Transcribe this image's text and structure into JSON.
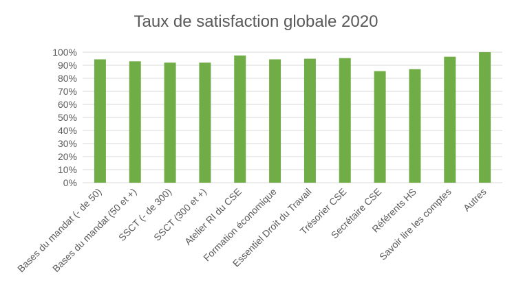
{
  "chart_data": {
    "type": "bar",
    "title": "Taux de satisfaction globale 2020",
    "xlabel": "",
    "ylabel": "",
    "categories": [
      "Bases du mandat (- de 50)",
      "Bases du mandat (50 et +)",
      "SSCT (- de 300)",
      "SSCT (300 et +)",
      "Atelier RI du CSE",
      "Formation économique",
      "Essentiel Droit du Travail",
      "Trésorier CSE",
      "Secrétaire CSE",
      "Référents HS",
      "Savoir lire les comptes",
      "Autres"
    ],
    "values": [
      0.945,
      0.93,
      0.92,
      0.92,
      0.975,
      0.945,
      0.95,
      0.955,
      0.855,
      0.87,
      0.965,
      1.0
    ],
    "ylim": [
      0,
      1
    ],
    "yticks": [
      "0%",
      "10%",
      "20%",
      "30%",
      "40%",
      "50%",
      "60%",
      "70%",
      "80%",
      "90%",
      "100%"
    ],
    "grid": true,
    "legend": "none",
    "bar_color": "#70AD47",
    "grid_color": "#D9D9D9",
    "text_color": "#595959"
  }
}
